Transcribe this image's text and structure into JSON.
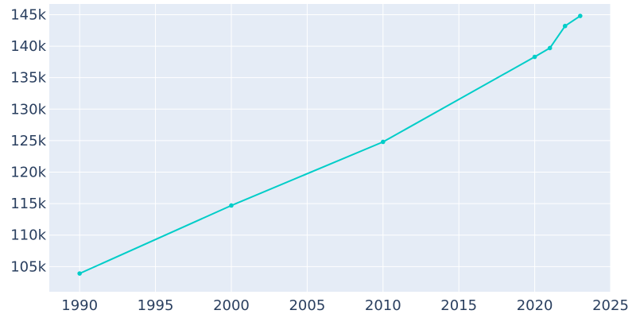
{
  "chart_data": {
    "type": "line",
    "title": "",
    "xlabel": "",
    "ylabel": "",
    "xlim": [
      1988,
      2025
    ],
    "ylim": [
      101000,
      146700
    ],
    "x_ticks": [
      1990,
      1995,
      2000,
      2005,
      2010,
      2015,
      2020,
      2025
    ],
    "x_tick_labels": [
      "1990",
      "1995",
      "2000",
      "2005",
      "2010",
      "2015",
      "2020",
      "2025"
    ],
    "y_ticks": [
      105000,
      110000,
      115000,
      120000,
      125000,
      130000,
      135000,
      140000,
      145000
    ],
    "y_tick_labels": [
      "105k",
      "110k",
      "115k",
      "120k",
      "125k",
      "130k",
      "135k",
      "140k",
      "145k"
    ],
    "grid": true,
    "legend": "none",
    "series": [
      {
        "x": [
          1990,
          2000,
          2010,
          2020,
          2021,
          2022,
          2023
        ],
        "y": [
          103900,
          114700,
          124800,
          138300,
          139700,
          143200,
          144800
        ]
      }
    ],
    "colors": {
      "line": "#00cdc8",
      "plot_bg": "#e5ecf6",
      "grid": "#ffffff",
      "text": "#2a3f5f"
    }
  }
}
